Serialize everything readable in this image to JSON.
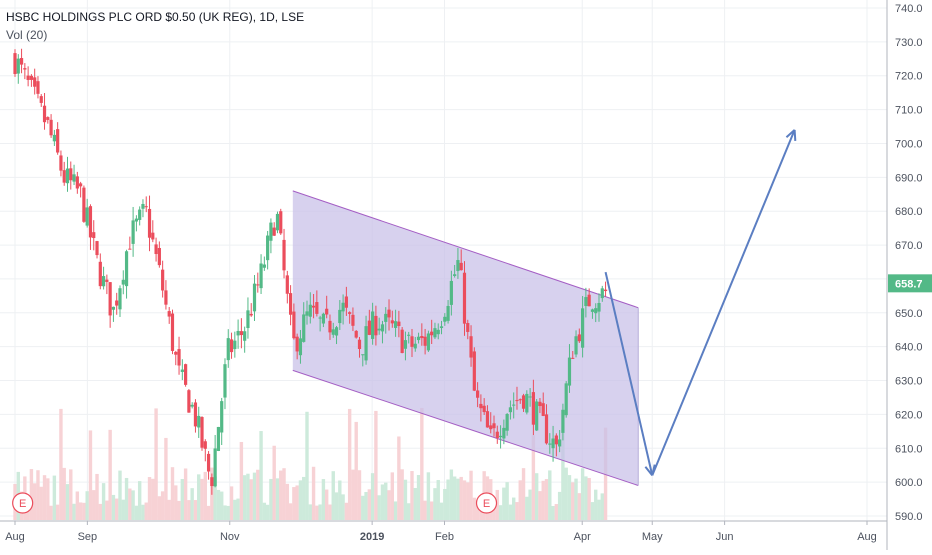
{
  "legend": {
    "symbol": "HSBC HOLDINGS PLC ORD $0.50 (UK REG), 1D, LSE",
    "volume": "Vol (20)"
  },
  "price_axis": {
    "ticks": [
      "740.0",
      "730.0",
      "720.0",
      "710.0",
      "700.0",
      "690.0",
      "680.0",
      "670.0",
      "660.0",
      "650.0",
      "640.0",
      "630.0",
      "620.0",
      "610.0",
      "600.0",
      "590.0"
    ],
    "last_price": "658.7"
  },
  "time_axis": {
    "ticks": [
      "Aug",
      "Sep",
      "Nov",
      "2019",
      "Feb",
      "Apr",
      "May",
      "Jun",
      "Aug"
    ]
  },
  "earnings_marker": "E",
  "colors": {
    "up": "#53b987",
    "down": "#eb4d5c",
    "volume_up": "#cdeadb",
    "volume_down": "#f7d2d5",
    "channel_fill": "#c8bfe8",
    "channel_line": "#a45ec4",
    "arrow": "#5b7ec2",
    "last_price_bg": "#53b987",
    "grid": "#eef0f3"
  },
  "chart_data": {
    "type": "candlestick",
    "title": "HSBC HOLDINGS PLC ORD $0.50 (UK REG), 1D, LSE",
    "series": [
      {
        "name": "Close",
        "x": [
          "2018-08-01",
          "2018-08-08",
          "2018-08-15",
          "2018-08-22",
          "2018-08-29",
          "2018-09-05",
          "2018-09-12",
          "2018-09-19",
          "2018-09-26",
          "2018-10-03",
          "2018-10-10",
          "2018-10-17",
          "2018-10-24",
          "2018-10-31",
          "2018-11-07",
          "2018-11-14",
          "2018-11-21",
          "2018-11-28",
          "2018-12-05",
          "2018-12-12",
          "2018-12-19",
          "2018-12-27",
          "2019-01-03",
          "2019-01-10",
          "2019-01-17",
          "2019-01-24",
          "2019-01-31",
          "2019-02-07",
          "2019-02-14",
          "2019-02-21",
          "2019-02-28",
          "2019-03-07",
          "2019-03-14",
          "2019-03-21",
          "2019-03-28",
          "2019-04-04",
          "2019-04-11"
        ],
        "values": [
          725,
          715,
          705,
          690,
          685,
          665,
          650,
          672,
          680,
          658,
          632,
          620,
          600,
          638,
          645,
          660,
          680,
          640,
          650,
          645,
          652,
          640,
          648,
          645,
          640,
          642,
          650,
          665,
          625,
          612,
          622,
          626,
          618,
          610,
          640,
          654,
          656
        ]
      }
    ],
    "ylim": [
      590,
      740
    ],
    "yticks": [
      740,
      730,
      720,
      710,
      700,
      690,
      680,
      670,
      660,
      650,
      640,
      630,
      620,
      610,
      600,
      590
    ],
    "last_price": 658.7,
    "channel": {
      "upper": [
        [
          "2018-11-28",
          686
        ],
        [
          "2019-04-25",
          651.5
        ]
      ],
      "lower": [
        [
          "2018-11-28",
          633
        ],
        [
          "2019-04-25",
          599
        ]
      ]
    },
    "projection": [
      [
        "2019-04-11",
        662
      ],
      [
        "2019-05-01",
        602
      ],
      [
        "2019-07-01",
        704
      ]
    ],
    "earnings": [
      "2018-07-31",
      "2019-02-19"
    ],
    "grid": true,
    "legend_position": "top-left"
  }
}
